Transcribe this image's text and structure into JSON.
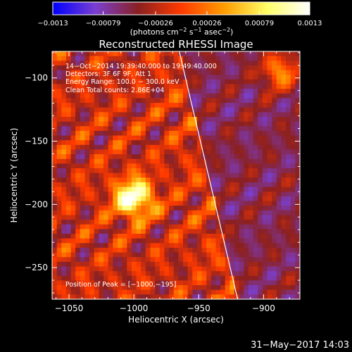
{
  "chart_data": {
    "type": "heatmap",
    "title": "Reconstructed RHESSI Image",
    "xlabel": "Heliocentric X (arcsec)",
    "ylabel": "Heliocentric Y (arcsec)",
    "xlim": [
      -1063,
      -872
    ],
    "ylim": [
      -275,
      -79
    ],
    "x_ticks": [
      -1050,
      -1000,
      -950,
      -900
    ],
    "y_ticks": [
      -250,
      -200,
      -150,
      -100
    ],
    "x_tick_labels": [
      "−1050",
      "−1000",
      "−950",
      "−900"
    ],
    "y_tick_labels": [
      "−250",
      "−200",
      "−150",
      "−100"
    ],
    "colorbar": {
      "ticks": [
        -0.0013,
        -0.00079,
        -0.00026,
        0.00026,
        0.00079,
        0.0013
      ],
      "tick_labels": [
        "−0.0013",
        "−0.00079",
        "−0.00026",
        "0.00026",
        "0.00079",
        "0.0013"
      ],
      "range": [
        -0.0013,
        0.0013
      ],
      "unit_label_parts": [
        "(photons cm",
        "−2",
        " s",
        "−1",
        " asec",
        "−2",
        ")"
      ],
      "colors": [
        "#0000ff",
        "#7a3fd0",
        "#8a2020",
        "#ff3a00",
        "#ff9c00",
        "#ffff66",
        "#ffffff"
      ]
    },
    "annotations": [
      "14−Oct−2014 19:39:40.000 to 19:49:40.000",
      "Detectors: 3F 6F 9F, Att 1",
      "Energy Range: 100.0 − 300.0 keV",
      "Clean    Total counts: 2.86E+04"
    ],
    "peak_label": "Position of Peak = [−1000,−195]",
    "peak": [
      -1000,
      -195
    ],
    "limb_line": [
      [
        -965,
        -79
      ],
      [
        -920,
        -275
      ]
    ]
  },
  "footer": {
    "timestamp": "31−May−2017 14:03"
  }
}
